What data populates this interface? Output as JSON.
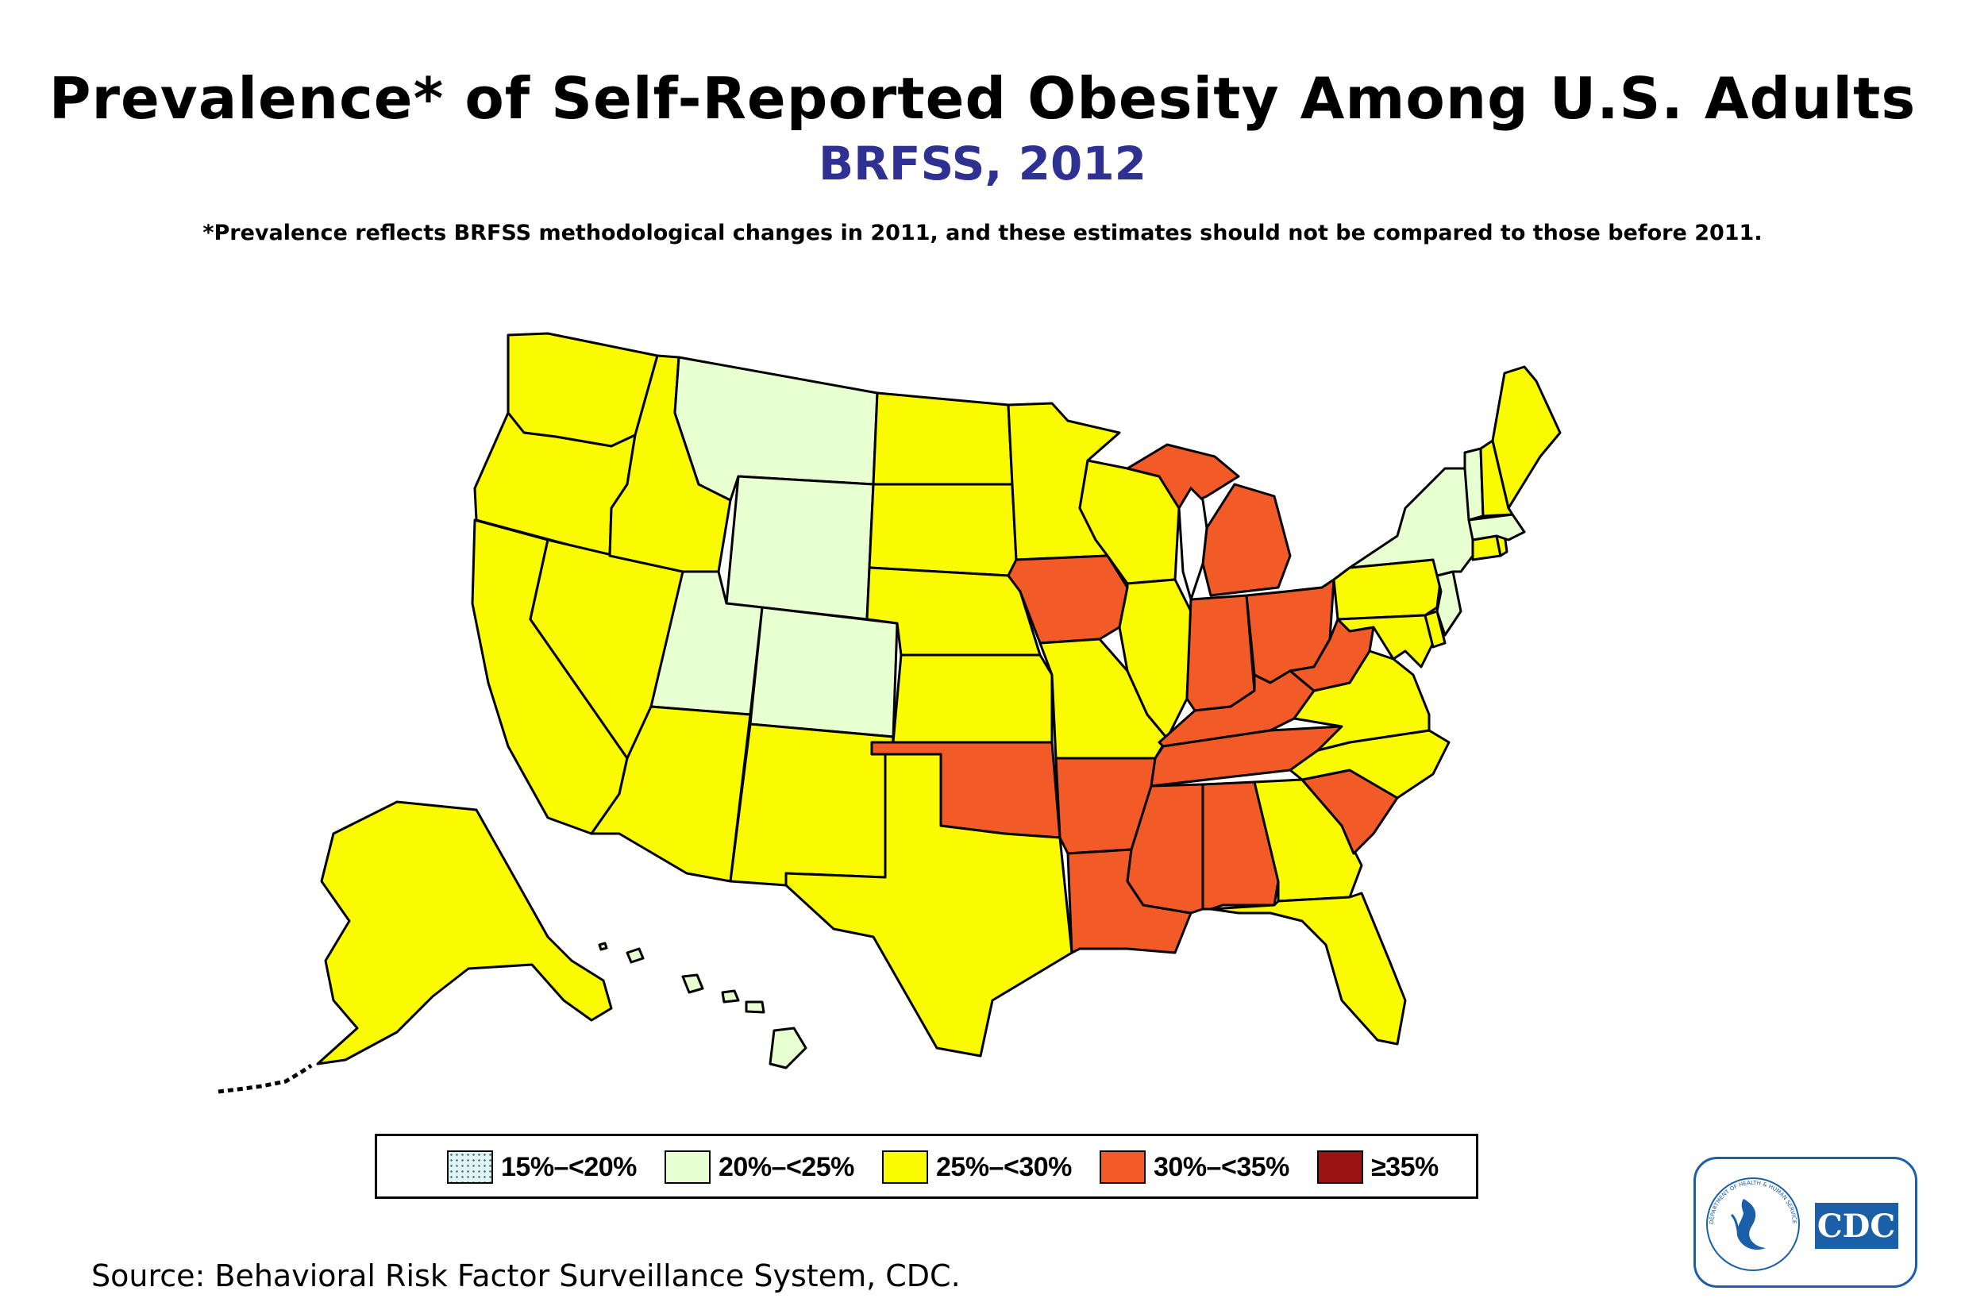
{
  "title": "Prevalence* of Self-Reported Obesity Among U.S. Adults",
  "subtitle": "BRFSS, 2012",
  "note": "*Prevalence reflects BRFSS methodological changes in 2011, and these estimates should not be compared to those before 2011.",
  "source": "Source: Behavioral Risk Factor Surveillance System, CDC.",
  "logo_text": "CDC",
  "hhs_text": "DEPARTMENT OF HEALTH & HUMAN SERVICES · USA",
  "colors": {
    "15-20": "#dff4f4",
    "20-25": "#e8ffd2",
    "25-30": "#fafa00",
    "30-35": "#f25a28",
    "35plus": "#9b1414",
    "border": "#000000",
    "subtitle": "#2e3192",
    "cdc_blue": "#1b5fa8"
  },
  "legend": [
    {
      "id": "15-20",
      "label": "15%–<20%",
      "pattern": "dotted"
    },
    {
      "id": "20-25",
      "label": "20%–<25%"
    },
    {
      "id": "25-30",
      "label": "25%–<30%"
    },
    {
      "id": "30-35",
      "label": "30%–<35%"
    },
    {
      "id": "35plus",
      "label": "≥35%"
    }
  ],
  "states": {
    "WA": "25-30",
    "OR": "25-30",
    "CA": "25-30",
    "NV": "25-30",
    "ID": "25-30",
    "MT": "20-25",
    "WY": "20-25",
    "UT": "20-25",
    "CO": "20-25",
    "AZ": "25-30",
    "NM": "25-30",
    "ND": "25-30",
    "SD": "25-30",
    "NE": "25-30",
    "KS": "25-30",
    "OK": "30-35",
    "TX": "25-30",
    "MN": "25-30",
    "IA": "30-35",
    "MO": "25-30",
    "AR": "30-35",
    "LA": "30-35",
    "WI": "25-30",
    "IL": "25-30",
    "MI": "30-35",
    "IN": "30-35",
    "OH": "30-35",
    "KY": "30-35",
    "TN": "30-35",
    "MS": "30-35",
    "AL": "30-35",
    "GA": "25-30",
    "FL": "25-30",
    "SC": "30-35",
    "NC": "25-30",
    "VA": "25-30",
    "WV": "30-35",
    "PA": "25-30",
    "NY": "20-25",
    "VT": "20-25",
    "NH": "25-30",
    "ME": "25-30",
    "MA": "20-25",
    "CT": "25-30",
    "RI": "25-30",
    "NJ": "20-25",
    "DE": "25-30",
    "MD": "25-30",
    "AK": "25-30",
    "HI": "20-25"
  }
}
